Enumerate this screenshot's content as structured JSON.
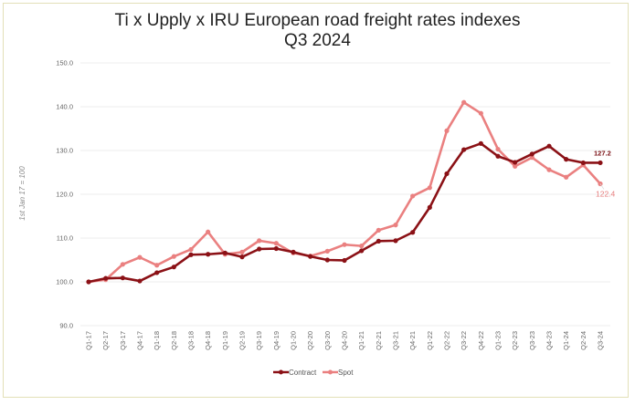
{
  "chart_data": {
    "type": "line",
    "title": "Ti x Upply x IRU European road freight rates indexes",
    "subtitle": "Q3 2024",
    "xlabel": "",
    "ylabel": "1st Jan 17 = 100",
    "ylim": [
      90,
      150
    ],
    "yticks": [
      "90.0",
      "100.0",
      "110.0",
      "120.0",
      "130.0",
      "140.0",
      "150.0"
    ],
    "ytick_values": [
      90,
      100,
      110,
      120,
      130,
      140,
      150
    ],
    "grid": true,
    "legend_position": "bottom",
    "categories": [
      "Q1-17",
      "Q2-17",
      "Q3-17",
      "Q4-17",
      "Q1-18",
      "Q2-18",
      "Q3-18",
      "Q4-18",
      "Q1-19",
      "Q2-19",
      "Q3-19",
      "Q4-19",
      "Q1-20",
      "Q2-20",
      "Q3-20",
      "Q4-20",
      "Q1-21",
      "Q2-21",
      "Q3-21",
      "Q4-21",
      "Q1-22",
      "Q2-22",
      "Q3-22",
      "Q4-22",
      "Q1-23",
      "Q2-23",
      "Q3-23",
      "Q4-23",
      "Q1-24",
      "Q2-24",
      "Q3-24"
    ],
    "series": [
      {
        "name": "Contract",
        "color": "#8b1116",
        "end_label": "127.2",
        "values": [
          100.0,
          100.8,
          100.9,
          100.2,
          102.1,
          103.4,
          106.2,
          106.3,
          106.6,
          105.7,
          107.5,
          107.6,
          106.8,
          105.8,
          105.0,
          104.9,
          107.1,
          109.3,
          109.4,
          111.3,
          117.0,
          124.7,
          130.2,
          131.6,
          128.7,
          127.3,
          129.2,
          131.0,
          128.0,
          127.2,
          127.2
        ]
      },
      {
        "name": "Spot",
        "color": "#ea8080",
        "end_label": "122.4",
        "values": [
          100.0,
          100.5,
          104.0,
          105.6,
          103.8,
          105.8,
          107.4,
          111.4,
          106.3,
          106.8,
          109.4,
          108.8,
          106.6,
          105.9,
          107.0,
          108.5,
          108.2,
          111.8,
          113.0,
          119.6,
          121.5,
          134.5,
          141.0,
          138.5,
          130.3,
          126.4,
          128.4,
          125.6,
          123.9,
          126.7,
          122.4
        ]
      }
    ]
  }
}
